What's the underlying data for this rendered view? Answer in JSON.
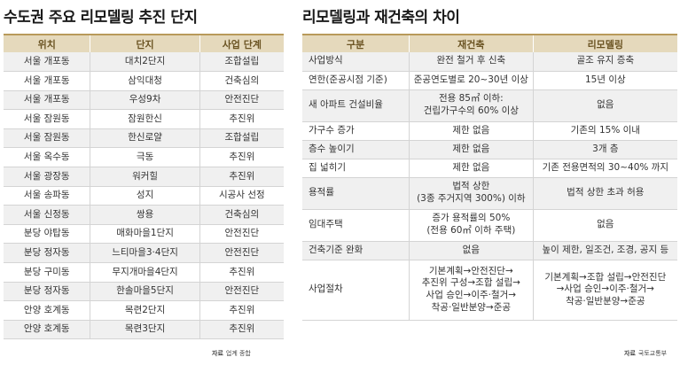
{
  "left": {
    "title": "수도권 주요 리모델링 추진 단지",
    "headers": [
      "위치",
      "단지",
      "사업 단계"
    ],
    "rows": [
      [
        "서울 개포동",
        "대치2단지",
        "조합설립"
      ],
      [
        "서울 개포동",
        "삼익대청",
        "건축심의"
      ],
      [
        "서울 개포동",
        "우성9차",
        "안전진단"
      ],
      [
        "서울 잠원동",
        "잠원한신",
        "추진위"
      ],
      [
        "서울 잠원동",
        "한신로얄",
        "조합설립"
      ],
      [
        "서울 옥수동",
        "극동",
        "추진위"
      ],
      [
        "서울 광장동",
        "워커힐",
        "추진위"
      ],
      [
        "서울 송파동",
        "성지",
        "시공사 선정"
      ],
      [
        "서울 신정동",
        "쌍용",
        "건축심의"
      ],
      [
        "분당 야탑동",
        "매화마을1단지",
        "안전진단"
      ],
      [
        "분당 정자동",
        "느티마을3·4단지",
        "안전진단"
      ],
      [
        "분당 구미동",
        "무지개마을4단지",
        "추진위"
      ],
      [
        "분당 정자동",
        "한솔마을5단지",
        "안전진단"
      ],
      [
        "안양 호계동",
        "목련2단지",
        "추진위"
      ],
      [
        "안양 호계동",
        "목련3단지",
        "추진위"
      ]
    ],
    "source_label": "자료",
    "source_text": "업계 종합"
  },
  "right": {
    "title": "리모델링과 재건축의 차이",
    "headers": [
      "구분",
      "재건축",
      "리모델링"
    ],
    "rows": [
      [
        "사업방식",
        "완전 철거 후 신축",
        "골조 유지 증축"
      ],
      [
        "연한(준공시점 기준)",
        "준공연도별로 20~30년 이상",
        "15년 이상"
      ],
      [
        "새 아파트 건설비율",
        "전용 85㎡ 이하:\n건립가구수의 60% 이상",
        "없음"
      ],
      [
        "가구수 증가",
        "제한 없음",
        "기존의 15% 이내"
      ],
      [
        "층수 높이기",
        "제한 없음",
        "3개 층"
      ],
      [
        "집 넓히기",
        "제한 없음",
        "기존 전용면적의 30~40% 까지"
      ],
      [
        "용적률",
        "법적 상한\n(3종 주거지역 300%) 이하",
        "법적 상한 초과 허용"
      ],
      [
        "임대주택",
        "증가 용적률의 50%\n(전용 60㎡ 이하 주택)",
        "없음"
      ],
      [
        "건축기준 완화",
        "없음",
        "높이 제한, 일조건, 조경, 공지 등"
      ],
      [
        "사업절차",
        "기본계획→안전진단→\n추진위 구성→조합 설립→\n사업 승인→이주·철거→\n착공·일반분양→준공",
        "기본계획→조합 설립→안전진단\n→사업 승인→이주·철거→\n착공·일반분양→준공"
      ]
    ],
    "row_heights": [
      21,
      21,
      36,
      21,
      21,
      21,
      36,
      36,
      21,
      68
    ],
    "source_label": "자료",
    "source_text": "국토교통부"
  }
}
